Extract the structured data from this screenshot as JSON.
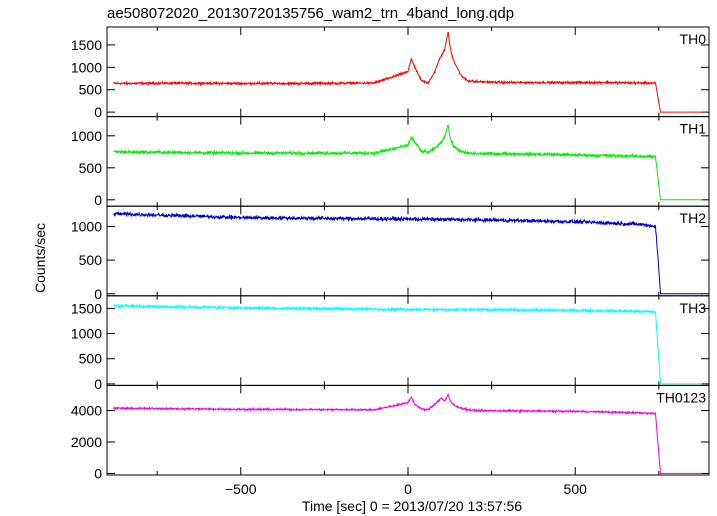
{
  "chart_data": {
    "type": "line",
    "title": "ae508072020_20130720135756_wam2_trn_4band_long.qdp",
    "xlabel": "Time [sec] 0 = 2013/07/20 13:57:56",
    "ylabel": "Counts/sec",
    "xlim": [
      -900,
      900
    ],
    "xticks": [
      -500,
      0,
      500
    ],
    "xtick_labels": [
      "−500",
      "0",
      "500"
    ],
    "grid": false,
    "panels": [
      {
        "name": "TH0",
        "color": "#ff0000",
        "ylim": [
          -100,
          1900
        ],
        "yticks": [
          0,
          500,
          1000,
          1500
        ],
        "ytick_labels": [
          "0",
          "500",
          "1000",
          "1500"
        ],
        "baseline": 640,
        "baseline_end": 650,
        "noise": 35,
        "x": [
          -880,
          -700,
          -500,
          -300,
          -100,
          0,
          10,
          20,
          40,
          60,
          80,
          95,
          110,
          120,
          125,
          130,
          140,
          160,
          180,
          200,
          300,
          500,
          600,
          700,
          740,
          755,
          880
        ],
        "values": [
          640,
          645,
          640,
          640,
          650,
          900,
          1200,
          1000,
          700,
          650,
          900,
          1200,
          1400,
          1800,
          1500,
          1300,
          1100,
          800,
          700,
          680,
          660,
          660,
          660,
          650,
          650,
          0,
          0
        ]
      },
      {
        "name": "TH1",
        "color": "#00ee00",
        "ylim": [
          -100,
          1300
        ],
        "yticks": [
          0,
          500,
          1000
        ],
        "ytick_labels": [
          "0",
          "500",
          "1000"
        ],
        "baseline": 740,
        "baseline_end": 680,
        "noise": 35,
        "x": [
          -880,
          -500,
          -100,
          0,
          10,
          20,
          40,
          60,
          80,
          100,
          110,
          120,
          125,
          130,
          140,
          160,
          180,
          200,
          300,
          500,
          700,
          740,
          755,
          880
        ],
        "values": [
          750,
          730,
          730,
          850,
          980,
          900,
          760,
          740,
          800,
          900,
          1000,
          1180,
          1000,
          900,
          820,
          750,
          730,
          720,
          720,
          700,
          680,
          670,
          0,
          0
        ]
      },
      {
        "name": "TH2",
        "color": "#0000cc",
        "ylim": [
          -30,
          1300
        ],
        "yticks": [
          0,
          500,
          1000
        ],
        "ytick_labels": [
          "0",
          "500",
          "1000"
        ],
        "baseline": 1180,
        "baseline_end": 1000,
        "noise": 40,
        "x": [
          -880,
          -500,
          0,
          300,
          500,
          700,
          740,
          748,
          755,
          880
        ],
        "values": [
          1190,
          1130,
          1110,
          1090,
          1070,
          1030,
          1000,
          500,
          0,
          0
        ]
      },
      {
        "name": "TH3",
        "color": "#00ffff",
        "ylim": [
          -30,
          1750
        ],
        "yticks": [
          0,
          500,
          1000,
          1500
        ],
        "ytick_labels": [
          "0",
          "500",
          "1000",
          "1500"
        ],
        "baseline": 1540,
        "baseline_end": 1430,
        "noise": 40,
        "x": [
          -880,
          -500,
          0,
          300,
          500,
          700,
          740,
          755,
          880
        ],
        "values": [
          1550,
          1510,
          1480,
          1470,
          1460,
          1440,
          1430,
          0,
          0
        ]
      },
      {
        "name": "TH0123",
        "color": "#ee00ee",
        "ylim": [
          -100,
          5600
        ],
        "yticks": [
          0,
          2000,
          4000
        ],
        "ytick_labels": [
          "0",
          "2000",
          "4000"
        ],
        "baseline": 4150,
        "baseline_end": 3800,
        "noise": 80,
        "x": [
          -880,
          -500,
          -100,
          0,
          10,
          20,
          40,
          60,
          80,
          100,
          110,
          120,
          125,
          130,
          140,
          160,
          180,
          200,
          300,
          500,
          700,
          740,
          755,
          880
        ],
        "values": [
          4150,
          4080,
          4050,
          4500,
          4850,
          4400,
          4100,
          4050,
          4400,
          4800,
          4600,
          5000,
          4700,
          4500,
          4300,
          4150,
          4050,
          4000,
          3980,
          3950,
          3850,
          3800,
          0,
          0
        ]
      }
    ]
  }
}
